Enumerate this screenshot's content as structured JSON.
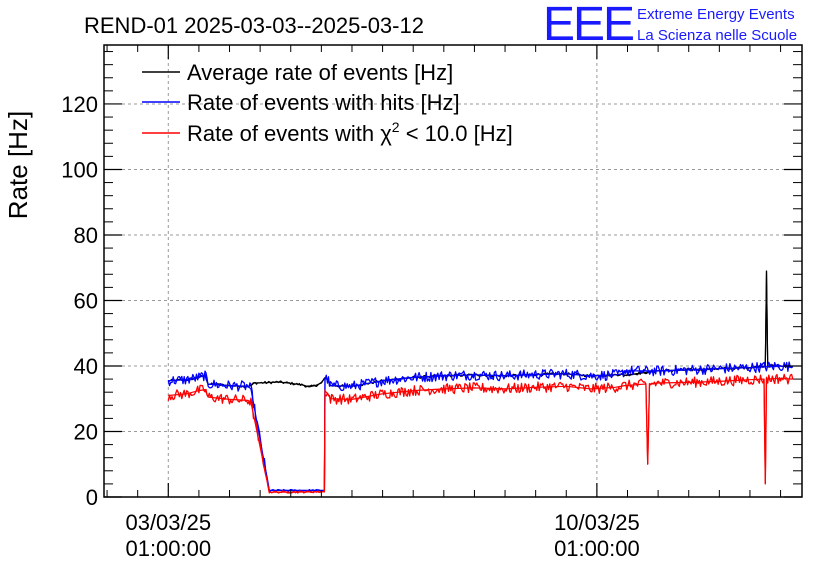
{
  "header": {
    "title": "REND-01 2025-03-03--2025-03-12",
    "logo_text": "EEE",
    "org_line1": "Extreme Energy Events",
    "org_line2": "La Scienza nelle Scuole"
  },
  "legend": {
    "items": [
      {
        "label": "Average rate of events [Hz]",
        "color": "#000000"
      },
      {
        "label": "Rate of events with hits [Hz]",
        "color": "#0000ff"
      },
      {
        "label_prefix": "Rate of events with ",
        "chi": "χ",
        "sup": "2",
        "label_suffix": " < 10.0 [Hz]",
        "color": "#ff0000"
      }
    ]
  },
  "chart_data": {
    "type": "line",
    "title": "REND-01 2025-03-03--2025-03-12",
    "ylabel": "Rate [Hz]",
    "xlabel": "",
    "ylim": [
      0,
      138
    ],
    "yticks": [
      0,
      20,
      40,
      60,
      80,
      100,
      120
    ],
    "x_unit": "days since 03/03/25 01:00:00",
    "xlim": [
      -1.05,
      10.35
    ],
    "xticks": [
      {
        "x": 0,
        "line1": "03/03/25",
        "line2": "01:00:00"
      },
      {
        "x": 7,
        "line1": "10/03/25",
        "line2": "01:00:00"
      }
    ],
    "grid": true,
    "series": [
      {
        "name": "Average rate of events [Hz]",
        "color": "#000000",
        "points": [
          [
            0.0,
            35.5
          ],
          [
            0.3,
            35.8
          ],
          [
            0.5,
            36.5
          ],
          [
            0.6,
            37.2
          ],
          [
            0.65,
            34.5
          ],
          [
            1.0,
            34.0
          ],
          [
            1.3,
            33.8
          ],
          [
            1.35,
            34.0
          ],
          [
            1.4,
            34.8
          ],
          [
            1.6,
            34.9
          ],
          [
            1.8,
            35.1
          ],
          [
            2.0,
            34.7
          ],
          [
            2.2,
            34.2
          ],
          [
            2.3,
            33.6
          ],
          [
            2.4,
            34.0
          ],
          [
            2.5,
            34.8
          ],
          [
            2.55,
            36.2
          ],
          [
            2.6,
            36.0
          ],
          [
            2.65,
            34.0
          ],
          [
            3.0,
            33.8
          ],
          [
            3.5,
            35.5
          ],
          [
            4.0,
            36.5
          ],
          [
            4.5,
            37.0
          ],
          [
            5.0,
            37.3
          ],
          [
            5.5,
            37.0
          ],
          [
            6.0,
            37.4
          ],
          [
            6.5,
            37.6
          ],
          [
            6.9,
            37.0
          ],
          [
            7.3,
            37.3
          ],
          [
            7.4,
            37.5
          ],
          [
            7.45,
            37.2
          ],
          [
            8.0,
            38.5
          ],
          [
            8.5,
            38.8
          ],
          [
            9.0,
            39.2
          ],
          [
            9.5,
            39.5
          ],
          [
            9.75,
            40.0
          ],
          [
            9.77,
            69.0
          ],
          [
            9.79,
            40.0
          ],
          [
            10.0,
            40.0
          ],
          [
            10.2,
            39.8
          ]
        ]
      },
      {
        "name": "Rate of events with hits [Hz]",
        "color": "#0000ff",
        "points": [
          [
            0.0,
            35.5
          ],
          [
            0.3,
            35.8
          ],
          [
            0.5,
            36.5
          ],
          [
            0.6,
            37.2
          ],
          [
            0.65,
            34.5
          ],
          [
            1.0,
            34.0
          ],
          [
            1.3,
            33.8
          ],
          [
            1.35,
            33.0
          ],
          [
            1.65,
            2.0
          ],
          [
            2.0,
            2.0
          ],
          [
            2.5,
            2.0
          ],
          [
            2.55,
            2.0
          ],
          [
            2.56,
            36.2
          ],
          [
            2.6,
            36.0
          ],
          [
            2.65,
            34.0
          ],
          [
            3.0,
            33.8
          ],
          [
            3.5,
            35.5
          ],
          [
            4.0,
            36.5
          ],
          [
            4.5,
            37.0
          ],
          [
            5.0,
            37.3
          ],
          [
            5.5,
            37.0
          ],
          [
            6.0,
            37.4
          ],
          [
            6.5,
            37.6
          ],
          [
            6.9,
            37.0
          ],
          [
            7.3,
            37.3
          ],
          [
            7.4,
            37.5
          ],
          [
            7.45,
            38.5
          ],
          [
            8.0,
            38.5
          ],
          [
            8.5,
            38.8
          ],
          [
            9.0,
            39.2
          ],
          [
            9.5,
            39.5
          ],
          [
            10.0,
            40.0
          ],
          [
            10.2,
            39.8
          ]
        ]
      },
      {
        "name": "Rate of events with chi2 < 10.0 [Hz]",
        "color": "#ff0000",
        "points": [
          [
            0.0,
            31.0
          ],
          [
            0.3,
            31.5
          ],
          [
            0.5,
            32.5
          ],
          [
            0.6,
            32.8
          ],
          [
            0.65,
            30.5
          ],
          [
            1.0,
            29.8
          ],
          [
            1.3,
            29.5
          ],
          [
            1.35,
            29.0
          ],
          [
            1.65,
            1.5
          ],
          [
            2.0,
            1.5
          ],
          [
            2.5,
            1.6
          ],
          [
            2.55,
            1.6
          ],
          [
            2.56,
            32.5
          ],
          [
            2.6,
            31.5
          ],
          [
            2.65,
            30.0
          ],
          [
            3.0,
            29.8
          ],
          [
            3.5,
            31.5
          ],
          [
            4.0,
            32.5
          ],
          [
            4.5,
            33.0
          ],
          [
            5.0,
            33.3
          ],
          [
            5.5,
            33.0
          ],
          [
            6.0,
            33.5
          ],
          [
            6.5,
            33.8
          ],
          [
            6.9,
            33.0
          ],
          [
            7.3,
            33.5
          ],
          [
            7.45,
            34.0
          ],
          [
            7.8,
            34.5
          ],
          [
            7.83,
            10.0
          ],
          [
            7.86,
            34.5
          ],
          [
            8.0,
            34.8
          ],
          [
            8.5,
            35.0
          ],
          [
            9.0,
            35.3
          ],
          [
            9.5,
            35.8
          ],
          [
            9.73,
            36.0
          ],
          [
            9.75,
            4.0
          ],
          [
            9.77,
            36.0
          ],
          [
            10.0,
            36.2
          ],
          [
            10.2,
            36.0
          ]
        ]
      }
    ]
  }
}
